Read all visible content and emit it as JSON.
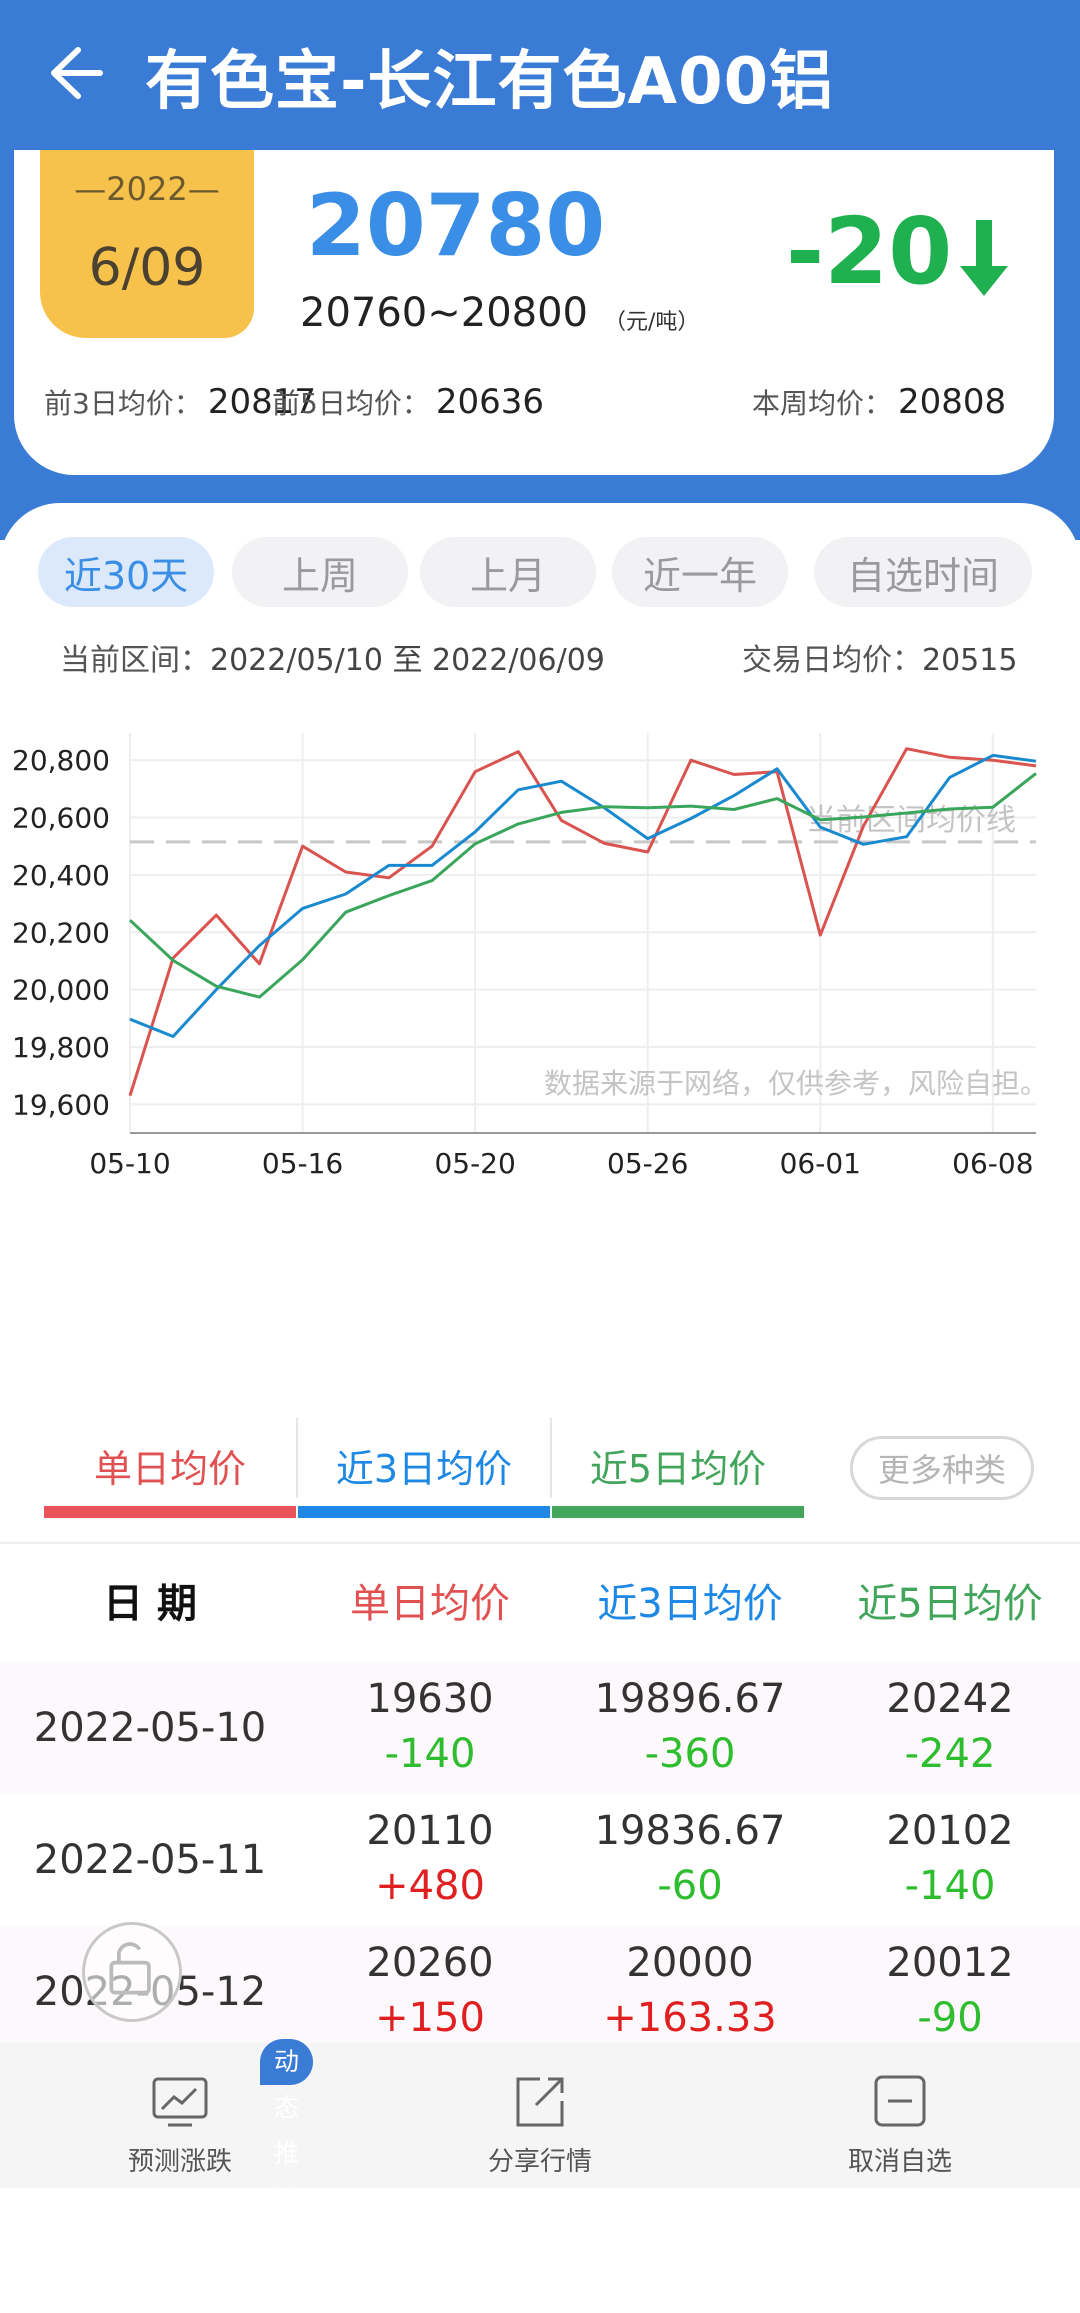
{
  "header": {
    "title": "有色宝-长江有色A00铝",
    "date_year": "—2022—",
    "date_md": "6/09",
    "price": "20780",
    "range": "20760~20800",
    "unit": "（元/吨）",
    "change": "-20",
    "avg3_label": "前3日均价：",
    "avg3_value": "20817",
    "avg5_label": "前5日均价：",
    "avg5_value": "20636",
    "week_label": "本周均价：",
    "week_value": "20808"
  },
  "tabs": [
    "近30天",
    "上周",
    "上月",
    "近一年",
    "自选时间"
  ],
  "range_info": {
    "label": "当前区间：",
    "value": "2022/05/10 至 2022/06/09",
    "avg_label": "交易日均价：",
    "avg_value": "20515"
  },
  "chart_data": {
    "type": "line",
    "x": [
      "05-10",
      "05-11",
      "05-12",
      "05-13",
      "05-16",
      "05-17",
      "05-18",
      "05-19",
      "05-20",
      "05-23",
      "05-24",
      "05-25",
      "05-26",
      "05-27",
      "05-30",
      "05-31",
      "06-01",
      "06-02",
      "06-06",
      "06-07",
      "06-08",
      "06-09"
    ],
    "xticks": [
      "05-10",
      "05-16",
      "05-20",
      "05-26",
      "06-01",
      "06-08"
    ],
    "yticks": [
      "20,800",
      "20,600",
      "20,400",
      "20,200",
      "20,000",
      "19,800",
      "19,600"
    ],
    "ylim": [
      19500,
      20860
    ],
    "series": [
      {
        "color": "#d9534f",
        "values": [
          19630,
          20110,
          20260,
          20090,
          20500,
          20410,
          20390,
          20500,
          20760,
          20830,
          20590,
          20510,
          20480,
          20800,
          20750,
          20760,
          20190,
          20570,
          20840,
          20810,
          20800,
          20780
        ]
      },
      {
        "color": "#1a8ad0",
        "values": [
          19896.67,
          19836.67,
          20000,
          20153.33,
          20283.33,
          20333.33,
          20433.33,
          20433.33,
          20550,
          20696.67,
          20726.67,
          20633.33,
          20526.67,
          20596.67,
          20676.67,
          20770,
          20566.67,
          20506.67,
          20533.33,
          20740,
          20816.67,
          20796.67
        ]
      },
      {
        "color": "#3aa65b",
        "values": [
          20242,
          20102,
          20012,
          19974,
          20104,
          20270,
          20328,
          20380,
          20508,
          20578,
          20618,
          20638,
          20634,
          20640,
          20628,
          20666,
          20592,
          20602,
          20616,
          20630,
          20636,
          20754
        ]
      }
    ],
    "avg_line_value": 20515,
    "avg_line_label": "当前区间均价线",
    "watermark": "数据来源于网络，仅供参考，风险自担。"
  },
  "legend": [
    {
      "label": "单日均价",
      "color": "#e05252"
    },
    {
      "label": "近3日均价",
      "color": "#1e88e5"
    },
    {
      "label": "近5日均价",
      "color": "#43a55b"
    }
  ],
  "more_label": "更多种类",
  "table": {
    "headers": [
      "日 期",
      "单日均价",
      "近3日均价",
      "近5日均价"
    ],
    "header_colors": [
      "#111111",
      "#e05252",
      "#1e88e5",
      "#43a55b"
    ],
    "rows": [
      {
        "date": "2022-05-10",
        "c1": "19630",
        "d1": "-140",
        "c2": "19896.67",
        "d2": "-360",
        "c3": "20242",
        "d3": "-242"
      },
      {
        "date": "2022-05-11",
        "c1": "20110",
        "d1": "+480",
        "c2": "19836.67",
        "d2": "-60",
        "c3": "20102",
        "d3": "-140"
      },
      {
        "date": "2022-05-12",
        "c1": "20260",
        "d1": "+150",
        "c2": "20000",
        "d2": "+163.33",
        "c3": "20012",
        "d3": "-90"
      }
    ]
  },
  "bottom": {
    "badge": "动态推算",
    "predict": "预测涨跌",
    "share": "分享行情",
    "unfollow": "取消自选"
  }
}
